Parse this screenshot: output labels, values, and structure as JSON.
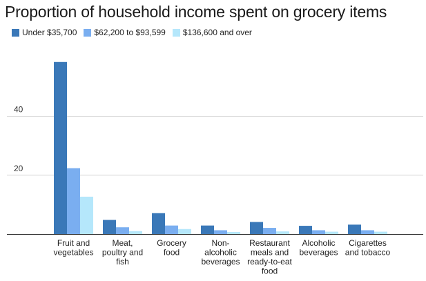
{
  "chart_data": {
    "type": "bar",
    "title": "Proportion of household income spent on grocery items",
    "xlabel": "",
    "ylabel": "",
    "ylim": [
      0,
      60
    ],
    "yticks": [
      20,
      40
    ],
    "grid": true,
    "legend_position": "top-left",
    "categories": [
      [
        "Fruit and",
        "vegetables"
      ],
      [
        "Meat,",
        "poultry and",
        "fish"
      ],
      [
        "Grocery",
        "food"
      ],
      [
        "Non-",
        "alcoholic",
        "beverages"
      ],
      [
        "Restaurant",
        "meals and",
        "ready-to-eat",
        "food"
      ],
      [
        "Alcoholic",
        "beverages"
      ],
      [
        "Cigarettes",
        "and tobacco"
      ]
    ],
    "series": [
      {
        "name": "Under $35,700",
        "color": "#3a78b8",
        "values": [
          58.5,
          4.8,
          7.1,
          2.9,
          4.1,
          2.8,
          3.2
        ]
      },
      {
        "name": "$62,200 to $93,599",
        "color": "#7aaef0",
        "values": [
          22.4,
          2.3,
          2.9,
          1.3,
          2.1,
          1.3,
          1.3
        ]
      },
      {
        "name": "$136,600 and over",
        "color": "#b5e7fb",
        "values": [
          12.7,
          1.0,
          1.7,
          0.7,
          0.9,
          0.8,
          0.8
        ]
      }
    ]
  }
}
